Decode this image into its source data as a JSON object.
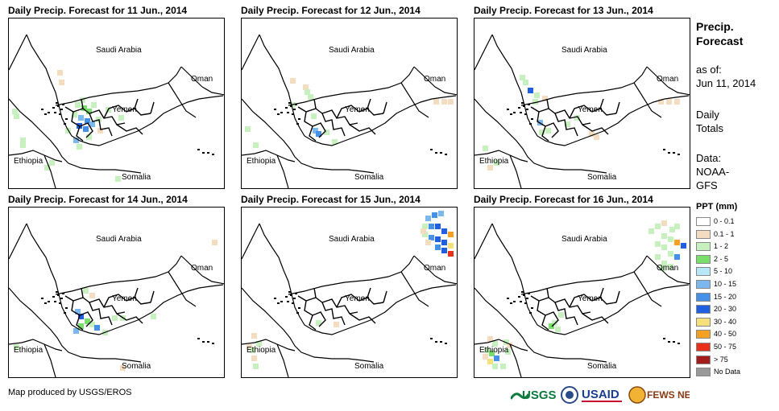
{
  "panels": [
    {
      "title": "Daily Precip. Forecast for 11 Jun., 2014"
    },
    {
      "title": "Daily Precip. Forecast for 12 Jun., 2014"
    },
    {
      "title": "Daily Precip. Forecast for 13 Jun., 2014"
    },
    {
      "title": "Daily Precip. Forecast for 14 Jun., 2014"
    },
    {
      "title": "Daily Precip. Forecast for 15 Jun., 2014"
    },
    {
      "title": "Daily Precip. Forecast for 16 Jun., 2014"
    }
  ],
  "map_labels": {
    "saudi": "Saudi Arabia",
    "oman": "Oman",
    "yemen": "Yemen",
    "ethiopia": "Ethiopia",
    "somalia": "Somalia"
  },
  "sidebar": {
    "title_line1": "Precip.",
    "title_line2": "Forecast",
    "asof_line1": "as of:",
    "asof_line2": "Jun 11, 2014",
    "totals_line1": "Daily",
    "totals_line2": "Totals",
    "source_line1": "Data:",
    "source_line2": "NOAA-",
    "source_line3": "GFS"
  },
  "legend": {
    "title": "PPT (mm)",
    "items": [
      {
        "label": "0 - 0.1",
        "color": "#ffffff"
      },
      {
        "label": "0.1 - 1",
        "color": "#f3dcbf"
      },
      {
        "label": "1 - 2",
        "color": "#c6f0bd"
      },
      {
        "label": "2 - 5",
        "color": "#78e06a"
      },
      {
        "label": "5 - 10",
        "color": "#b6e8f7"
      },
      {
        "label": "10 - 15",
        "color": "#7cb7ee"
      },
      {
        "label": "15 - 20",
        "color": "#4591e8"
      },
      {
        "label": "20 - 30",
        "color": "#1f5fe0"
      },
      {
        "label": "30 - 40",
        "color": "#f6e07a"
      },
      {
        "label": "40 - 50",
        "color": "#f3a023"
      },
      {
        "label": "50 - 75",
        "color": "#e8301b"
      },
      {
        "label": "> 75",
        "color": "#a31c1c"
      },
      {
        "label": "No Data",
        "color": "#999999"
      }
    ]
  },
  "footer": {
    "credit": "Map produced by USGS/EROS",
    "logo_usgs": "USGS",
    "logo_usaid": "USAID",
    "logo_fews": "FEWS NET"
  }
}
